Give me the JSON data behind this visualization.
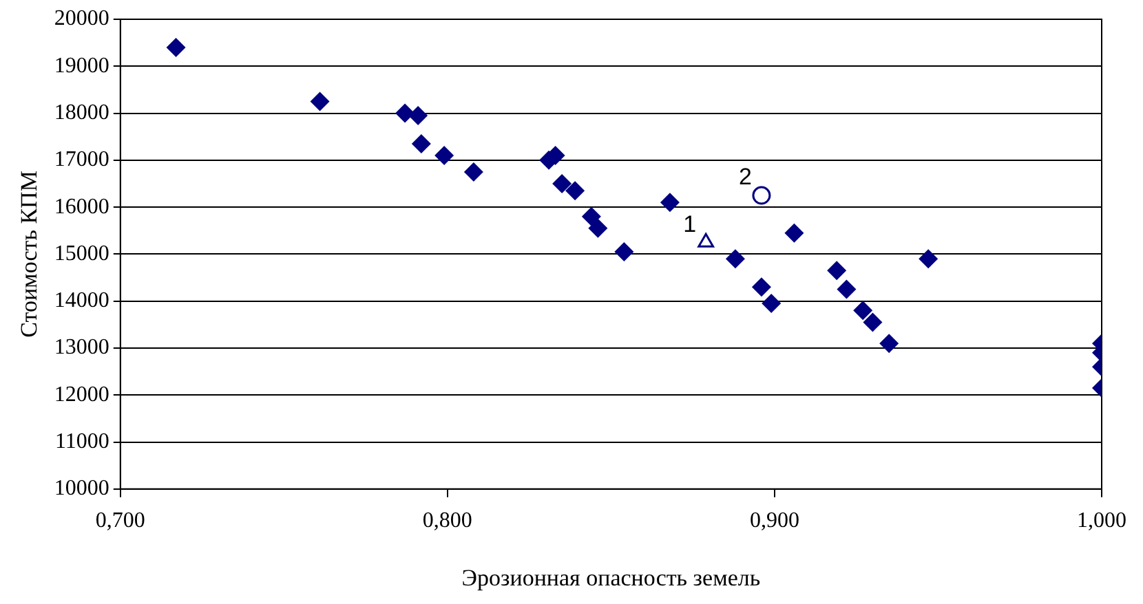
{
  "chart_data": {
    "type": "scatter",
    "xlabel": "Эрозионная опасность земель",
    "ylabel": "Стоимость КПМ",
    "series": [
      {
        "color": "#000080",
        "marker": "diamond",
        "x": [
          0.717,
          0.761,
          0.787,
          0.791,
          0.792,
          0.799,
          0.808,
          0.831,
          0.833,
          0.835,
          0.839,
          0.844,
          0.846,
          0.854,
          0.868,
          0.888,
          0.896,
          0.899,
          0.906,
          0.919,
          0.922,
          0.927,
          0.93,
          0.935,
          0.947,
          1.0,
          1.0,
          1.0,
          1.0
        ],
        "values": [
          19400,
          18250,
          18000,
          17950,
          17350,
          17100,
          16750,
          17000,
          17100,
          16500,
          16350,
          15800,
          15550,
          15050,
          16100,
          14900,
          14300,
          13950,
          15450,
          14650,
          14250,
          13800,
          13550,
          13100,
          14900,
          13100,
          12900,
          12600,
          12150
        ]
      },
      {
        "color": "#000080",
        "marker": "triangle",
        "x": [
          0.879
        ],
        "values": [
          15250
        ]
      },
      {
        "color": "#000080",
        "marker": "circle",
        "x": [
          0.896
        ],
        "values": [
          16250
        ]
      }
    ],
    "annotations": [
      {
        "text": "1",
        "x": 0.879,
        "y": 15250
      },
      {
        "text": "2",
        "x": 0.896,
        "y": 16250
      }
    ],
    "xlim": [
      0.7,
      1.0
    ],
    "xticks": [
      {
        "value": 0.7,
        "label": "0,700"
      },
      {
        "value": 0.8,
        "label": "0,800"
      },
      {
        "value": 0.9,
        "label": "0,900"
      },
      {
        "value": 1.0,
        "label": "1,000"
      }
    ],
    "ylim": [
      10000,
      20000
    ],
    "yticks": [
      10000,
      11000,
      12000,
      13000,
      14000,
      15000,
      16000,
      17000,
      18000,
      19000,
      20000
    ],
    "grid": "y",
    "legend": false
  }
}
